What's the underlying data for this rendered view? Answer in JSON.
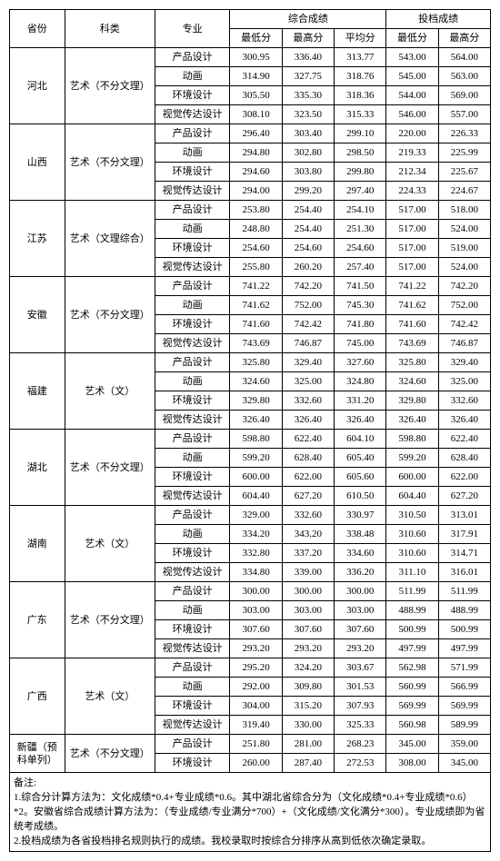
{
  "headers": {
    "province": "省份",
    "category": "科类",
    "major": "专业",
    "comp_group": "综合成绩",
    "file_group": "投档成绩",
    "min": "最低分",
    "max": "最高分",
    "avg": "平均分"
  },
  "rows": [
    {
      "prov": "河北",
      "prov_span": 4,
      "cat": "艺术（不分文理）",
      "cat_span": 4,
      "major": "产品设计",
      "c_min": "300.95",
      "c_max": "336.40",
      "c_avg": "313.77",
      "f_min": "543.00",
      "f_max": "564.00"
    },
    {
      "major": "动画",
      "c_min": "314.90",
      "c_max": "327.75",
      "c_avg": "318.76",
      "f_min": "545.00",
      "f_max": "563.00"
    },
    {
      "major": "环境设计",
      "c_min": "305.50",
      "c_max": "335.30",
      "c_avg": "318.36",
      "f_min": "544.00",
      "f_max": "569.00"
    },
    {
      "major": "视觉传达设计",
      "c_min": "308.10",
      "c_max": "323.50",
      "c_avg": "315.33",
      "f_min": "546.00",
      "f_max": "557.00"
    },
    {
      "prov": "山西",
      "prov_span": 4,
      "cat": "艺术（不分文理）",
      "cat_span": 4,
      "major": "产品设计",
      "c_min": "296.40",
      "c_max": "303.40",
      "c_avg": "299.10",
      "f_min": "220.00",
      "f_max": "226.33"
    },
    {
      "major": "动画",
      "c_min": "294.80",
      "c_max": "302.80",
      "c_avg": "298.50",
      "f_min": "219.33",
      "f_max": "225.99"
    },
    {
      "major": "环境设计",
      "c_min": "294.60",
      "c_max": "303.80",
      "c_avg": "299.80",
      "f_min": "212.34",
      "f_max": "225.67"
    },
    {
      "major": "视觉传达设计",
      "c_min": "294.00",
      "c_max": "299.20",
      "c_avg": "297.40",
      "f_min": "224.33",
      "f_max": "224.67"
    },
    {
      "prov": "江苏",
      "prov_span": 4,
      "cat": "艺术（文理综合）",
      "cat_span": 4,
      "major": "产品设计",
      "c_min": "253.80",
      "c_max": "254.40",
      "c_avg": "254.10",
      "f_min": "517.00",
      "f_max": "518.00"
    },
    {
      "major": "动画",
      "c_min": "248.80",
      "c_max": "254.40",
      "c_avg": "251.30",
      "f_min": "517.00",
      "f_max": "524.00"
    },
    {
      "major": "环境设计",
      "c_min": "254.60",
      "c_max": "254.60",
      "c_avg": "254.60",
      "f_min": "517.00",
      "f_max": "519.00"
    },
    {
      "major": "视觉传达设计",
      "c_min": "255.80",
      "c_max": "260.20",
      "c_avg": "257.40",
      "f_min": "517.00",
      "f_max": "524.00"
    },
    {
      "prov": "安徽",
      "prov_span": 4,
      "cat": "艺术（不分文理）",
      "cat_span": 4,
      "major": "产品设计",
      "c_min": "741.22",
      "c_max": "742.20",
      "c_avg": "741.50",
      "f_min": "741.22",
      "f_max": "742.20"
    },
    {
      "major": "动画",
      "c_min": "741.62",
      "c_max": "752.00",
      "c_avg": "745.30",
      "f_min": "741.62",
      "f_max": "752.00"
    },
    {
      "major": "环境设计",
      "c_min": "741.60",
      "c_max": "742.42",
      "c_avg": "741.80",
      "f_min": "741.60",
      "f_max": "742.42"
    },
    {
      "major": "视觉传达设计",
      "c_min": "743.69",
      "c_max": "746.87",
      "c_avg": "745.00",
      "f_min": "743.69",
      "f_max": "746.87"
    },
    {
      "prov": "福建",
      "prov_span": 4,
      "cat": "艺术（文）",
      "cat_span": 4,
      "major": "产品设计",
      "c_min": "325.80",
      "c_max": "329.40",
      "c_avg": "327.60",
      "f_min": "325.80",
      "f_max": "329.40"
    },
    {
      "major": "动画",
      "c_min": "324.60",
      "c_max": "325.00",
      "c_avg": "324.80",
      "f_min": "324.60",
      "f_max": "325.00"
    },
    {
      "major": "环境设计",
      "c_min": "329.80",
      "c_max": "332.60",
      "c_avg": "331.20",
      "f_min": "329.80",
      "f_max": "332.60"
    },
    {
      "major": "视觉传达设计",
      "c_min": "326.40",
      "c_max": "326.40",
      "c_avg": "326.40",
      "f_min": "326.40",
      "f_max": "326.40"
    },
    {
      "prov": "湖北",
      "prov_span": 4,
      "cat": "艺术（不分文理）",
      "cat_span": 4,
      "major": "产品设计",
      "c_min": "598.80",
      "c_max": "622.40",
      "c_avg": "604.10",
      "f_min": "598.80",
      "f_max": "622.40"
    },
    {
      "major": "动画",
      "c_min": "599.20",
      "c_max": "628.40",
      "c_avg": "605.40",
      "f_min": "599.20",
      "f_max": "628.40"
    },
    {
      "major": "环境设计",
      "c_min": "600.00",
      "c_max": "622.00",
      "c_avg": "605.60",
      "f_min": "600.00",
      "f_max": "622.00"
    },
    {
      "major": "视觉传达设计",
      "c_min": "604.40",
      "c_max": "627.20",
      "c_avg": "610.50",
      "f_min": "604.40",
      "f_max": "627.20"
    },
    {
      "prov": "湖南",
      "prov_span": 4,
      "cat": "艺术（文）",
      "cat_span": 4,
      "major": "产品设计",
      "c_min": "329.00",
      "c_max": "332.60",
      "c_avg": "330.97",
      "f_min": "310.50",
      "f_max": "313.01"
    },
    {
      "major": "动画",
      "c_min": "334.20",
      "c_max": "343.20",
      "c_avg": "338.48",
      "f_min": "310.60",
      "f_max": "317.91"
    },
    {
      "major": "环境设计",
      "c_min": "332.80",
      "c_max": "337.20",
      "c_avg": "334.60",
      "f_min": "310.60",
      "f_max": "314.71"
    },
    {
      "major": "视觉传达设计",
      "c_min": "334.80",
      "c_max": "339.00",
      "c_avg": "336.20",
      "f_min": "311.10",
      "f_max": "316.01"
    },
    {
      "prov": "广东",
      "prov_span": 4,
      "cat": "艺术（不分文理）",
      "cat_span": 4,
      "major": "产品设计",
      "c_min": "300.00",
      "c_max": "300.00",
      "c_avg": "300.00",
      "f_min": "511.99",
      "f_max": "511.99"
    },
    {
      "major": "动画",
      "c_min": "303.00",
      "c_max": "303.00",
      "c_avg": "303.00",
      "f_min": "488.99",
      "f_max": "488.99"
    },
    {
      "major": "环境设计",
      "c_min": "307.60",
      "c_max": "307.60",
      "c_avg": "307.60",
      "f_min": "500.99",
      "f_max": "500.99"
    },
    {
      "major": "视觉传达设计",
      "c_min": "293.20",
      "c_max": "293.20",
      "c_avg": "293.20",
      "f_min": "497.99",
      "f_max": "497.99"
    },
    {
      "prov": "广西",
      "prov_span": 4,
      "cat": "艺术（文）",
      "cat_span": 4,
      "major": "产品设计",
      "c_min": "295.20",
      "c_max": "324.20",
      "c_avg": "303.67",
      "f_min": "562.98",
      "f_max": "571.99"
    },
    {
      "major": "动画",
      "c_min": "292.00",
      "c_max": "309.80",
      "c_avg": "301.53",
      "f_min": "560.99",
      "f_max": "566.99"
    },
    {
      "major": "环境设计",
      "c_min": "304.00",
      "c_max": "315.20",
      "c_avg": "307.93",
      "f_min": "569.99",
      "f_max": "569.99"
    },
    {
      "major": "视觉传达设计",
      "c_min": "319.40",
      "c_max": "330.00",
      "c_avg": "325.33",
      "f_min": "560.98",
      "f_max": "589.99"
    },
    {
      "prov": "新疆（预科单列）",
      "prov_span": 2,
      "cat": "艺术（不分文理）",
      "cat_span": 2,
      "major": "产品设计",
      "c_min": "251.80",
      "c_max": "281.00",
      "c_avg": "268.23",
      "f_min": "345.00",
      "f_max": "359.00"
    },
    {
      "major": "环境设计",
      "c_min": "260.00",
      "c_max": "287.40",
      "c_avg": "272.53",
      "f_min": "308.00",
      "f_max": "345.00"
    }
  ],
  "notes": {
    "title": "备注:",
    "line1": "1.综合分计算方法为：文化成绩*0.4+专业成绩*0.6。其中湖北省综合分为（文化成绩*0.4+专业成绩*0.6）*2。安徽省综合成绩计算方法为：（专业成绩/专业满分*700）+（文化成绩/文化满分*300）。专业成绩即为省统考成绩。",
    "line2": "2.投档成绩为各省投档排名规则执行的成绩。我校录取时按综合分排序从高到低依次确定录取。"
  }
}
